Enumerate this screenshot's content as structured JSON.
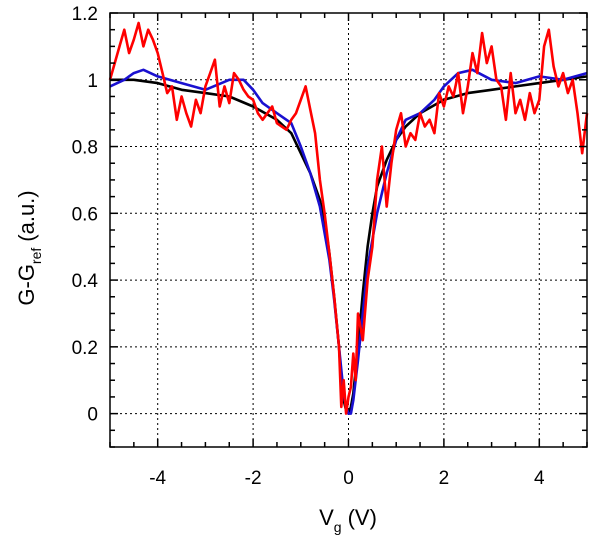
{
  "chart_data": {
    "type": "line",
    "xlabel_main": "V",
    "xlabel_sub": "g",
    "xlabel_unit": "(V)",
    "ylabel_main": "G-G",
    "ylabel_sub": "ref",
    "ylabel_unit": "(a.u.)",
    "xlim": [
      -5,
      5
    ],
    "ylim": [
      -0.1,
      1.2
    ],
    "xticks": [
      -4,
      -2,
      0,
      2,
      4
    ],
    "xtick_labels": [
      "-4",
      "-2",
      "0",
      "2",
      "4"
    ],
    "yticks": [
      0,
      0.2,
      0.4,
      0.6,
      0.8,
      1,
      1.2
    ],
    "ytick_labels": [
      "0",
      "0.2",
      "0.4",
      "0.6",
      "0.8",
      "1",
      "1.2"
    ],
    "grid": true,
    "legend": "none",
    "series": [
      {
        "color": "#000000",
        "x": [
          -5.0,
          -4.5,
          -4.0,
          -3.5,
          -3.0,
          -2.5,
          -2.0,
          -1.5,
          -1.2,
          -1.0,
          -0.8,
          -0.6,
          -0.5,
          -0.4,
          -0.3,
          -0.2,
          -0.15,
          -0.1,
          -0.05,
          0.0,
          0.05,
          0.1,
          0.2,
          0.3,
          0.4,
          0.5,
          0.6,
          0.8,
          1.0,
          1.2,
          1.5,
          2.0,
          2.5,
          3.0,
          3.5,
          4.0,
          4.5,
          5.0
        ],
        "y": [
          1.0,
          1.0,
          0.99,
          0.97,
          0.96,
          0.95,
          0.92,
          0.88,
          0.84,
          0.78,
          0.72,
          0.64,
          0.58,
          0.48,
          0.35,
          0.2,
          0.1,
          0.04,
          0.01,
          0.0,
          0.02,
          0.06,
          0.2,
          0.36,
          0.5,
          0.6,
          0.68,
          0.76,
          0.82,
          0.86,
          0.9,
          0.94,
          0.96,
          0.97,
          0.98,
          0.99,
          1.0,
          1.01
        ]
      },
      {
        "color": "#1a10d0",
        "x": [
          -5.0,
          -4.7,
          -4.5,
          -4.3,
          -4.0,
          -3.5,
          -3.0,
          -2.5,
          -2.2,
          -2.0,
          -1.8,
          -1.5,
          -1.2,
          -1.0,
          -0.8,
          -0.6,
          -0.4,
          -0.3,
          -0.2,
          -0.1,
          -0.05,
          0.0,
          0.05,
          0.1,
          0.2,
          0.3,
          0.4,
          0.6,
          0.8,
          1.0,
          1.2,
          1.5,
          1.8,
          2.0,
          2.3,
          2.6,
          3.0,
          3.5,
          4.0,
          4.5,
          5.0
        ],
        "y": [
          0.98,
          1.0,
          1.02,
          1.03,
          1.01,
          0.99,
          0.97,
          1.0,
          1.0,
          0.97,
          0.93,
          0.9,
          0.87,
          0.8,
          0.72,
          0.62,
          0.46,
          0.34,
          0.2,
          0.06,
          0.02,
          0.0,
          0.0,
          0.04,
          0.16,
          0.3,
          0.44,
          0.6,
          0.72,
          0.82,
          0.88,
          0.9,
          0.94,
          0.98,
          1.02,
          1.03,
          1.0,
          0.99,
          1.01,
          1.0,
          1.02
        ]
      },
      {
        "color": "#ff0000",
        "x": [
          -5.0,
          -4.8,
          -4.7,
          -4.6,
          -4.5,
          -4.4,
          -4.3,
          -4.2,
          -4.1,
          -4.0,
          -3.9,
          -3.8,
          -3.7,
          -3.6,
          -3.5,
          -3.4,
          -3.3,
          -3.2,
          -3.1,
          -3.0,
          -2.9,
          -2.8,
          -2.7,
          -2.6,
          -2.5,
          -2.4,
          -2.3,
          -2.2,
          -2.1,
          -2.0,
          -1.9,
          -1.8,
          -1.7,
          -1.6,
          -1.5,
          -1.4,
          -1.3,
          -1.2,
          -1.1,
          -1.0,
          -0.9,
          -0.8,
          -0.7,
          -0.6,
          -0.5,
          -0.4,
          -0.3,
          -0.2,
          -0.15,
          -0.1,
          -0.05,
          0.0,
          0.05,
          0.1,
          0.15,
          0.2,
          0.3,
          0.4,
          0.5,
          0.6,
          0.7,
          0.8,
          0.9,
          1.0,
          1.1,
          1.2,
          1.3,
          1.4,
          1.5,
          1.6,
          1.7,
          1.8,
          1.9,
          2.0,
          2.1,
          2.2,
          2.3,
          2.4,
          2.5,
          2.6,
          2.7,
          2.8,
          2.9,
          3.0,
          3.1,
          3.2,
          3.3,
          3.4,
          3.5,
          3.6,
          3.7,
          3.8,
          3.9,
          4.0,
          4.1,
          4.2,
          4.3,
          4.4,
          4.5,
          4.6,
          4.7,
          4.8,
          4.9,
          5.0
        ],
        "y": [
          1.0,
          1.1,
          1.15,
          1.08,
          1.12,
          1.17,
          1.1,
          1.15,
          1.12,
          1.08,
          1.02,
          0.96,
          0.98,
          0.88,
          0.95,
          0.9,
          0.86,
          0.94,
          0.9,
          0.98,
          1.02,
          1.06,
          0.92,
          0.98,
          0.93,
          1.02,
          1.0,
          0.97,
          0.95,
          0.94,
          0.9,
          0.88,
          0.9,
          0.92,
          0.87,
          0.86,
          0.85,
          0.88,
          0.9,
          0.94,
          0.98,
          0.91,
          0.84,
          0.7,
          0.6,
          0.48,
          0.35,
          0.2,
          0.02,
          0.1,
          0.0,
          0.05,
          0.08,
          0.18,
          0.1,
          0.3,
          0.22,
          0.4,
          0.5,
          0.7,
          0.8,
          0.62,
          0.75,
          0.85,
          0.9,
          0.8,
          0.84,
          0.82,
          0.9,
          0.86,
          0.88,
          0.84,
          0.96,
          0.92,
          0.98,
          0.95,
          1.02,
          0.9,
          0.98,
          1.08,
          1.02,
          1.14,
          1.05,
          1.1,
          1.0,
          0.98,
          0.88,
          1.02,
          0.9,
          0.94,
          0.88,
          0.96,
          0.9,
          0.94,
          1.1,
          1.15,
          1.04,
          0.98,
          1.02,
          0.96,
          1.0,
          0.9,
          0.78,
          0.9
        ]
      }
    ]
  }
}
